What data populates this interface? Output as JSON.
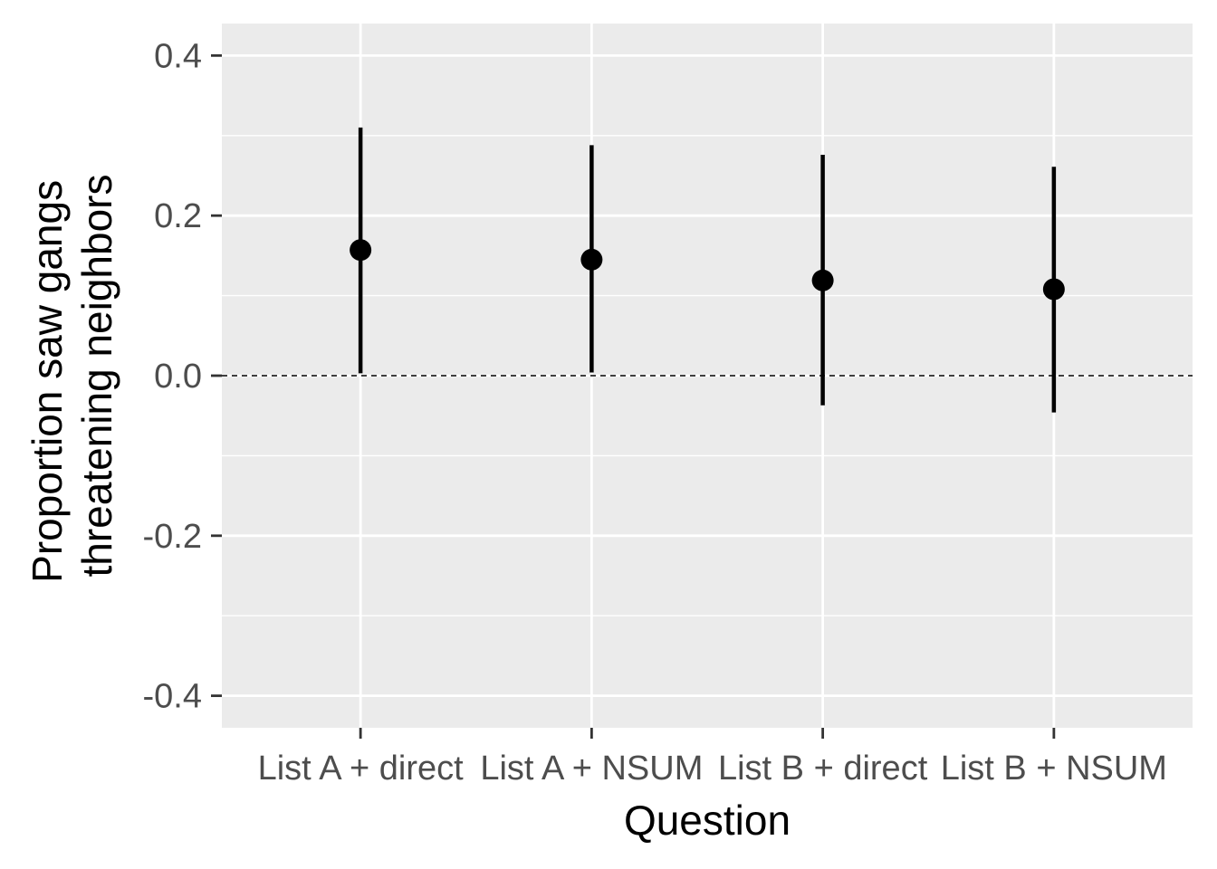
{
  "chart_data": {
    "type": "pointrange",
    "xlabel": "Question",
    "ylabel_lines": [
      "Proportion saw gangs",
      "threatening neighbors"
    ],
    "categories": [
      "List A + direct",
      "List A + NSUM",
      "List B + direct",
      "List B + NSUM"
    ],
    "series": [
      {
        "estimate": [
          0.157,
          0.145,
          0.119,
          0.108
        ],
        "lower": [
          0.003,
          0.004,
          -0.037,
          -0.046
        ],
        "upper": [
          0.31,
          0.288,
          0.276,
          0.261
        ]
      }
    ],
    "ylim": [
      -0.44,
      0.44
    ],
    "y_ticks": [
      -0.4,
      -0.2,
      0.0,
      0.2,
      0.4
    ],
    "y_tick_labels": [
      "-0.4",
      "-0.2",
      "0.0",
      "0.2",
      "0.4"
    ],
    "reference_line": 0.0,
    "grid": true,
    "colors": {
      "panel": "#ebebeb",
      "grid": "#ffffff",
      "marks": "#000000",
      "tick_text": "#4d4d4d"
    }
  }
}
